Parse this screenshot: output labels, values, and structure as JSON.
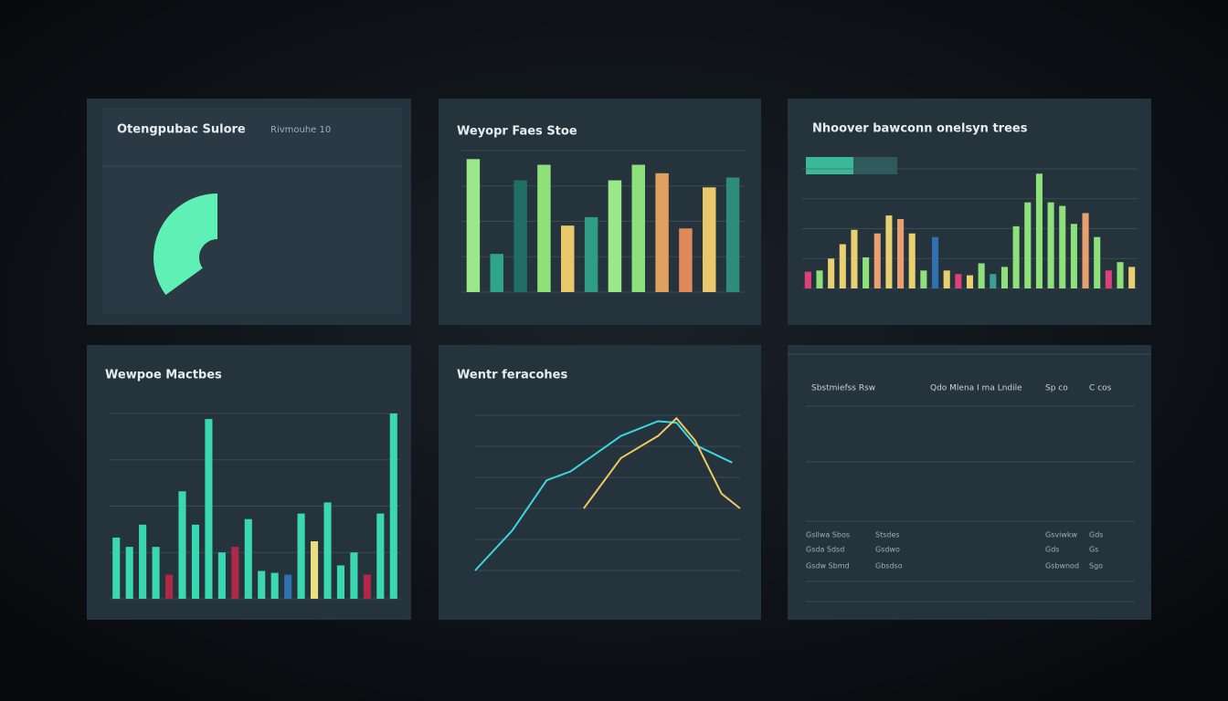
{
  "chart_data": [
    {
      "type": "gauge",
      "title": "Otengpubac Sulore",
      "subtitle": "Rivmouhe 10",
      "value": 35,
      "ylim": [
        0,
        100
      ],
      "color": "#5ef0b4"
    },
    {
      "type": "bar",
      "title": "Weyopr Faes Stoe",
      "ylim": [
        0,
        100
      ],
      "values": [
        94,
        27,
        79,
        90,
        47,
        53,
        79,
        90,
        84,
        45,
        74,
        81
      ],
      "colors": [
        "#9be88a",
        "#2fa48a",
        "#1f6f63",
        "#8de07a",
        "#e8c86a",
        "#2f9c86",
        "#9be88a",
        "#8de07a",
        "#e0a060",
        "#e08a5a",
        "#e8c86a",
        "#2f8c7c"
      ]
    },
    {
      "type": "bar",
      "title": "Nhoover bawconn onelsyn trees",
      "ylim": [
        0,
        100
      ],
      "values": [
        14,
        15,
        25,
        37,
        49,
        26,
        46,
        61,
        58,
        46,
        15,
        43,
        15,
        12,
        11,
        21,
        12,
        18,
        52,
        72,
        96,
        72,
        69,
        54,
        63,
        43,
        15,
        22,
        18
      ],
      "colors": [
        "#e0407a",
        "#8de07a",
        "#e8d070",
        "#e8d070",
        "#e8d070",
        "#8de07a",
        "#e8a070",
        "#e8d070",
        "#e8a070",
        "#e8d070",
        "#8de07a",
        "#3070b0",
        "#e8d070",
        "#e0407a",
        "#e8d070",
        "#8de07a",
        "#3aa090",
        "#8de07a",
        "#8de07a",
        "#8de07a",
        "#8de07a",
        "#8de07a",
        "#8de07a",
        "#8de07a",
        "#e8a070",
        "#8de07a",
        "#e0407a",
        "#8de07a",
        "#e8d070"
      ]
    },
    {
      "type": "bar",
      "title": "Wewpoe Mactbes",
      "ylim": [
        0,
        100
      ],
      "values": [
        33,
        28,
        40,
        28,
        13,
        58,
        40,
        97,
        25,
        28,
        43,
        15,
        14,
        13,
        46,
        31,
        52,
        18,
        25,
        13,
        46,
        100
      ],
      "colors": [
        "#3ad8b0",
        "#3ad8b0",
        "#3ad8b0",
        "#3ad8b0",
        "#b02848",
        "#3ad8b0",
        "#3ad8b0",
        "#3ad8b0",
        "#3ad8b0",
        "#b02848",
        "#3ad8b0",
        "#3ad8b0",
        "#3ad8b0",
        "#3070b0",
        "#3ad8b0",
        "#e8e080",
        "#3ad8b0",
        "#3ad8b0",
        "#3ad8b0",
        "#b02848",
        "#3ad8b0",
        "#3ad8b0"
      ]
    },
    {
      "type": "line",
      "title": "Wentr feracohes",
      "xlim": [
        0,
        100
      ],
      "ylim": [
        0,
        105
      ],
      "series": [
        {
          "color": "#3ad8e0",
          "x": [
            0,
            14,
            27,
            36,
            55,
            69,
            76,
            83,
            97
          ],
          "values": [
            0,
            27,
            61,
            67,
            91,
            101,
            100,
            85,
            73
          ]
        },
        {
          "color": "#f0c860",
          "x": [
            41,
            55,
            69,
            76,
            83,
            93,
            100
          ],
          "values": [
            42,
            76,
            91,
            103,
            88,
            52,
            42
          ]
        }
      ]
    }
  ],
  "table": {
    "header": [
      "Sbstmiefss Rsw",
      "Qdo Mlena I ma Lndile",
      "Sp co",
      "C cos"
    ],
    "rows": [
      [
        "Gsllwa Sbos",
        "Stsdes",
        "Gsviwkw",
        "Gds"
      ],
      [
        "Gsda Sdsd",
        "Gsdwo",
        "Gds",
        "Gs"
      ],
      [
        "Gsdw Sbmd",
        "Gbsdso",
        "Gsbwnod",
        "Sgo"
      ]
    ]
  }
}
